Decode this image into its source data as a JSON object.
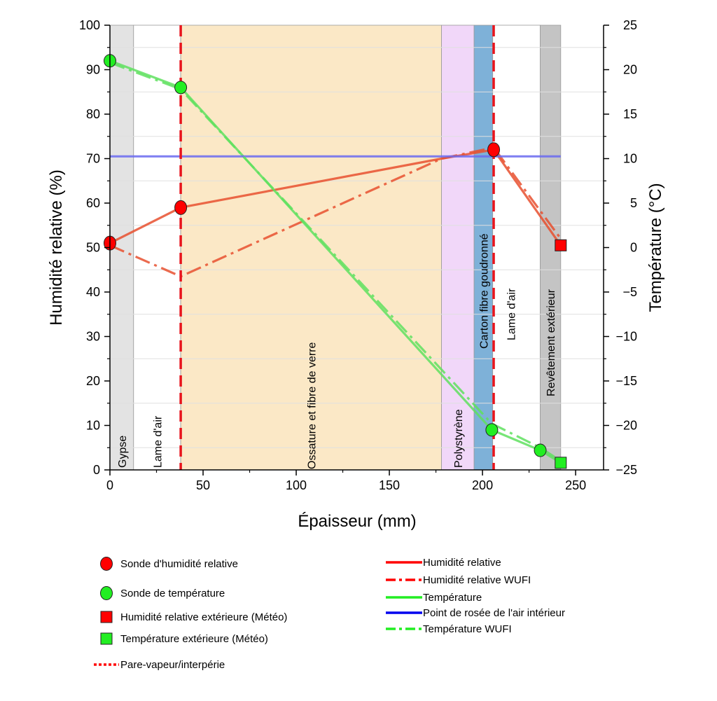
{
  "chart_data": {
    "type": "line",
    "xlabel": "Épaisseur (mm)",
    "ylabel_left": "Humidité relative (%)",
    "ylabel_right": "Température (°C)",
    "xlim": [
      0,
      265
    ],
    "ylim_left": [
      0,
      100
    ],
    "ylim_right": [
      -25,
      25
    ],
    "xticks": [
      0,
      50,
      100,
      150,
      200,
      250
    ],
    "yticks_left": [
      0,
      10,
      20,
      30,
      40,
      50,
      60,
      70,
      80,
      90,
      100
    ],
    "yticks_right": [
      -25,
      -20,
      -15,
      -10,
      -5,
      0,
      5,
      10,
      15,
      20,
      25
    ],
    "xtick_labels": [
      "0",
      "50",
      "100",
      "150",
      "200",
      "250"
    ],
    "yticks_left_labels": [
      "0",
      "10",
      "20",
      "30",
      "40",
      "50",
      "60",
      "70",
      "80",
      "90",
      "100"
    ],
    "yticks_right_labels": [
      "−25",
      "−20",
      "−15",
      "−10",
      "−5",
      "0",
      "5",
      "10",
      "15",
      "20",
      "25"
    ],
    "layers": [
      {
        "label": "Gypse",
        "x0": 0,
        "x1": 12.7,
        "color": "#e3e3e3"
      },
      {
        "label": "Lame d'air",
        "x0": 12.7,
        "x1": 38,
        "color": "#ffffff"
      },
      {
        "label": "Ossature et fibre de verre",
        "x0": 38,
        "x1": 178,
        "color": "#fbe8c6"
      },
      {
        "label": "Polystyrène",
        "x0": 178,
        "x1": 195.5,
        "color": "#f1d7f9"
      },
      {
        "label": "Carton fibre goudronné",
        "x0": 195.5,
        "x1": 205.5,
        "color": "#7eb1d8"
      },
      {
        "label": "Lame d'air",
        "x0": 205.5,
        "x1": 231,
        "color": "#ffffff"
      },
      {
        "label": "Revêtement extérieur",
        "x0": 231,
        "x1": 242,
        "color": "#c4c4c4"
      }
    ],
    "vapor_barriers_x": [
      38,
      206
    ],
    "series": [
      {
        "name": "Humidité relative",
        "axis": "left",
        "color": "#e8502f",
        "x": [
          0,
          38,
          178,
          206,
          242
        ],
        "y": [
          51,
          59,
          70,
          72,
          50.5
        ]
      },
      {
        "name": "Humidité relative WUFI",
        "axis": "left",
        "color": "#e8502f",
        "x": [
          0,
          38,
          178,
          206,
          242
        ],
        "y": [
          50.5,
          43.5,
          70,
          72.5,
          52
        ]
      },
      {
        "name": "Température",
        "axis": "right",
        "color": "#5fe05f",
        "x": [
          0,
          38,
          205,
          231,
          242
        ],
        "y": [
          21,
          18,
          -20.5,
          -22.8,
          -24.2
        ]
      },
      {
        "name": "Point de rosée de l'air intérieur",
        "axis": "left",
        "color": "#6b6bf0",
        "x": [
          0,
          242
        ],
        "y": [
          70.5,
          70.5
        ]
      },
      {
        "name": "Température WUFI",
        "axis": "right",
        "color": "#5fe05f",
        "x": [
          0,
          38,
          205,
          231,
          242
        ],
        "y": [
          20.8,
          17.8,
          -19.8,
          -22.5,
          -24
        ]
      }
    ],
    "rh_probes": {
      "x": [
        0,
        38,
        206
      ],
      "y": [
        51,
        59,
        72
      ]
    },
    "temp_probes": {
      "x": [
        0,
        38,
        205,
        231
      ],
      "y": [
        21,
        18,
        -20.5,
        -22.8
      ]
    },
    "rh_exterior": {
      "x": 242,
      "y": 50.5
    },
    "temp_exterior": {
      "x": 242,
      "y": -24.2
    },
    "legend_left": [
      {
        "label": "Sonde d'humidité relative",
        "symbol": "circle",
        "color": "#ff0000"
      },
      {
        "label": "Sonde de température",
        "symbol": "circle",
        "color": "#22ee22"
      },
      {
        "label": "Humidité relative extérieure (Météo)",
        "symbol": "square",
        "color": "#ff0000"
      },
      {
        "label": "Température extérieure (Météo)",
        "symbol": "square",
        "color": "#22ee22"
      },
      {
        "label": "Pare-vapeur/interpérie",
        "symbol": "dotted",
        "color": "#ff0000"
      }
    ],
    "legend_right": [
      {
        "label": "Humidité relative",
        "symbol": "solid",
        "color": "#ff0000"
      },
      {
        "label": "Humidité relative WUFI",
        "symbol": "dash",
        "color": "#ff0000"
      },
      {
        "label": "Température",
        "symbol": "solid",
        "color": "#22ee22"
      },
      {
        "label": "Point de rosée de l'air intérieur",
        "symbol": "solid",
        "color": "#0000ee"
      },
      {
        "label": "Température WUFI",
        "symbol": "dashdot",
        "color": "#22ee22"
      }
    ]
  }
}
